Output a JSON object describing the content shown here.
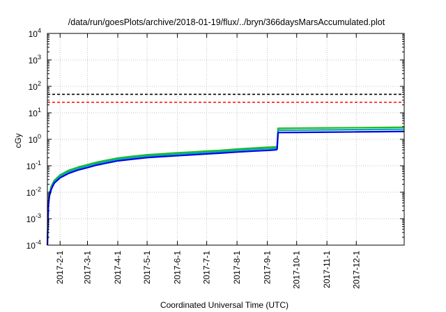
{
  "chart_data": {
    "type": "line",
    "title": "/data/run/goesPlots/archive/2018-01-19/flux/../bryn/366daysMarsAccumulated.plot",
    "xlabel": "Coordinated Universal Time (UTC)",
    "ylabel": "cGy",
    "yscale": "log",
    "ylim": [
      0.0001,
      10000
    ],
    "xlim": [
      "2017-01-19",
      "2018-01-19"
    ],
    "grid": true,
    "legend": "none",
    "x_ticks": [
      "2017-2-1",
      "2017-3-1",
      "2017-4-1",
      "2017-5-1",
      "2017-6-1",
      "2017-7-1",
      "2017-8-1",
      "2017-9-1",
      "2017-10-1",
      "2017-11-1",
      "2017-12-1"
    ],
    "y_ticks": [
      {
        "base": "10",
        "exp": "-4",
        "value": 0.0001
      },
      {
        "base": "10",
        "exp": "-3",
        "value": 0.001
      },
      {
        "base": "10",
        "exp": "-2",
        "value": 0.01
      },
      {
        "base": "10",
        "exp": "-1",
        "value": 0.1
      },
      {
        "base": "10",
        "exp": "0",
        "value": 1
      },
      {
        "base": "10",
        "exp": "1",
        "value": 10
      },
      {
        "base": "10",
        "exp": "2",
        "value": 100
      },
      {
        "base": "10",
        "exp": "3",
        "value": 1000
      },
      {
        "base": "10",
        "exp": "4",
        "value": 10000
      }
    ],
    "reference_lines": [
      {
        "value": 50,
        "color": "#000000",
        "style": "dashed"
      },
      {
        "value": 25,
        "color": "#ff0000",
        "style": "dashed"
      }
    ],
    "series": [
      {
        "color": "#22bb22",
        "x": [
          "2017-01-19",
          "2017-01-20",
          "2017-01-21",
          "2017-01-23",
          "2017-01-26",
          "2017-02-01",
          "2017-02-10",
          "2017-02-20",
          "2017-03-01",
          "2017-03-10",
          "2017-03-20",
          "2017-04-01",
          "2017-04-15",
          "2017-05-01",
          "2017-05-15",
          "2017-06-01",
          "2017-06-15",
          "2017-07-01",
          "2017-07-15",
          "2017-08-01",
          "2017-08-15",
          "2017-09-01",
          "2017-09-10",
          "2017-09-11",
          "2017-09-12",
          "2017-10-01",
          "2017-11-01",
          "2017-12-01",
          "2018-01-01",
          "2018-01-19"
        ],
        "y": [
          0.0001,
          0.004,
          0.009,
          0.017,
          0.028,
          0.045,
          0.068,
          0.09,
          0.11,
          0.135,
          0.16,
          0.195,
          0.225,
          0.26,
          0.28,
          0.31,
          0.33,
          0.36,
          0.38,
          0.43,
          0.46,
          0.5,
          0.52,
          0.55,
          2.6,
          2.65,
          2.7,
          2.75,
          2.8,
          2.85
        ]
      },
      {
        "color": "#00aaaa",
        "x": [
          "2017-01-19",
          "2017-01-20",
          "2017-01-21",
          "2017-01-23",
          "2017-01-26",
          "2017-02-01",
          "2017-02-10",
          "2017-02-20",
          "2017-03-01",
          "2017-03-10",
          "2017-03-20",
          "2017-04-01",
          "2017-04-15",
          "2017-05-01",
          "2017-05-15",
          "2017-06-01",
          "2017-06-15",
          "2017-07-01",
          "2017-07-15",
          "2017-08-01",
          "2017-08-15",
          "2017-09-01",
          "2017-09-10",
          "2017-09-11",
          "2017-09-12",
          "2017-10-01",
          "2017-11-01",
          "2017-12-01",
          "2018-01-01",
          "2018-01-19"
        ],
        "y": [
          0.0001,
          0.0035,
          0.008,
          0.015,
          0.025,
          0.04,
          0.06,
          0.08,
          0.098,
          0.12,
          0.143,
          0.175,
          0.2,
          0.232,
          0.25,
          0.275,
          0.295,
          0.32,
          0.34,
          0.38,
          0.41,
          0.44,
          0.46,
          0.48,
          2.2,
          2.22,
          2.27,
          2.32,
          2.37,
          2.4
        ]
      },
      {
        "color": "#0000ee",
        "x": [
          "2017-01-19",
          "2017-01-20",
          "2017-01-21",
          "2017-01-23",
          "2017-01-26",
          "2017-02-01",
          "2017-02-10",
          "2017-02-20",
          "2017-03-01",
          "2017-03-10",
          "2017-03-20",
          "2017-04-01",
          "2017-04-15",
          "2017-05-01",
          "2017-05-15",
          "2017-06-01",
          "2017-06-15",
          "2017-07-01",
          "2017-07-15",
          "2017-08-01",
          "2017-08-15",
          "2017-09-01",
          "2017-09-10",
          "2017-09-11",
          "2017-09-12",
          "2017-10-01",
          "2017-11-01",
          "2017-12-01",
          "2018-01-01",
          "2018-01-19"
        ],
        "y": [
          0.0001,
          0.003,
          0.007,
          0.013,
          0.022,
          0.035,
          0.052,
          0.07,
          0.085,
          0.105,
          0.125,
          0.153,
          0.175,
          0.203,
          0.22,
          0.24,
          0.258,
          0.28,
          0.3,
          0.33,
          0.355,
          0.38,
          0.4,
          0.42,
          1.8,
          1.82,
          1.86,
          1.9,
          1.95,
          1.98
        ]
      }
    ]
  }
}
